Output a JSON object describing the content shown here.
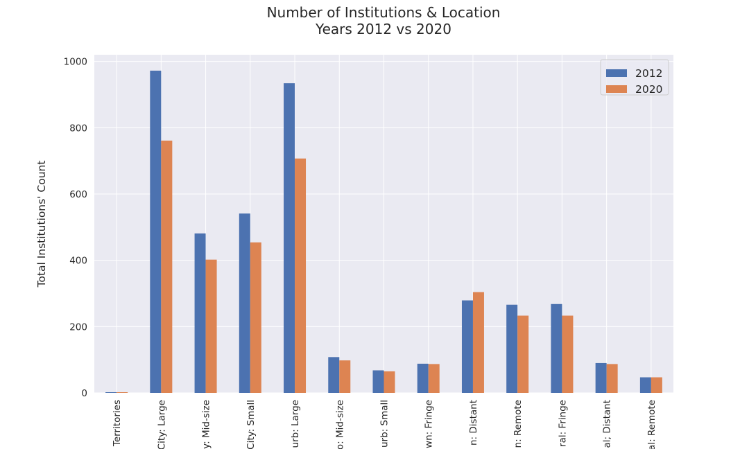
{
  "chart_data": {
    "type": "bar",
    "title_lines": [
      "Number of Institutions & Location",
      "Years 2012 vs 2020"
    ],
    "xlabel": "",
    "ylabel": "Total Institutions' Count",
    "ylim": [
      0,
      1020
    ],
    "yticks": [
      0,
      200,
      400,
      600,
      800,
      1000
    ],
    "grid": true,
    "legend_position": "top-right",
    "categories": [
      "Territories",
      "City: Large",
      "y: Mid-size",
      "City: Small",
      "urb: Large",
      "o: Mid-size",
      "urb: Small",
      "wn: Fringe",
      "n: Distant",
      "n: Remote",
      "ral: Fringe",
      "al; Distant",
      "al: Remote"
    ],
    "series": [
      {
        "name": "2012",
        "color": "#4c72b0",
        "values": [
          2,
          972,
          481,
          541,
          934,
          108,
          68,
          88,
          279,
          266,
          268,
          90,
          47
        ]
      },
      {
        "name": "2020",
        "color": "#dd8452",
        "values": [
          2,
          761,
          402,
          454,
          707,
          98,
          65,
          87,
          304,
          233,
          233,
          87,
          47
        ]
      }
    ],
    "colors": {
      "plot_background": "#eaeaf2",
      "grid": "#ffffff",
      "text": "#262626"
    }
  }
}
